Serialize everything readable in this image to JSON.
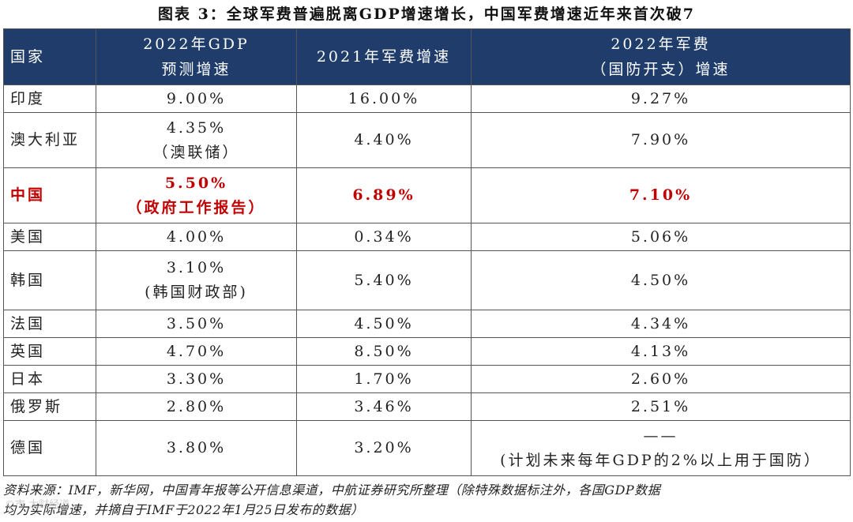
{
  "title": "图表 3：全球军费普遍脱离GDP增速增长，中国军费增速近年来首次破7",
  "headers": {
    "country": "国家",
    "gdp_line1": "2022年GDP",
    "gdp_line2": "预测增速",
    "mil2021": "2021年军费增速",
    "mil2022_line1": "2022年军费",
    "mil2022_line2": "（国防开支）增速"
  },
  "rows": [
    {
      "country": "印度",
      "gdp": "9.00%",
      "gdp_note": "",
      "mil2021": "16.00%",
      "mil2022": "9.27%",
      "mil2022_note": ""
    },
    {
      "country": "澳大利亚",
      "gdp": "4.35%",
      "gdp_note": "（澳联储）",
      "mil2021": "4.40%",
      "mil2022": "7.90%",
      "mil2022_note": ""
    },
    {
      "country": "中国",
      "gdp": "5.50%",
      "gdp_note": "（政府工作报告）",
      "mil2021": "6.89%",
      "mil2022": "7.10%",
      "mil2022_note": ""
    },
    {
      "country": "美国",
      "gdp": "4.00%",
      "gdp_note": "",
      "mil2021": "0.34%",
      "mil2022": "5.06%",
      "mil2022_note": ""
    },
    {
      "country": "韩国",
      "gdp": "3.10%",
      "gdp_note": "(韩国财政部)",
      "mil2021": "5.40%",
      "mil2022": "4.50%",
      "mil2022_note": ""
    },
    {
      "country": "法国",
      "gdp": "3.50%",
      "gdp_note": "",
      "mil2021": "4.50%",
      "mil2022": "4.34%",
      "mil2022_note": ""
    },
    {
      "country": "英国",
      "gdp": "4.70%",
      "gdp_note": "",
      "mil2021": "8.50%",
      "mil2022": "4.13%",
      "mil2022_note": ""
    },
    {
      "country": "日本",
      "gdp": "3.30%",
      "gdp_note": "",
      "mil2021": "1.70%",
      "mil2022": "2.60%",
      "mil2022_note": ""
    },
    {
      "country": "俄罗斯",
      "gdp": "2.80%",
      "gdp_note": "",
      "mil2021": "3.46%",
      "mil2022": "2.51%",
      "mil2022_note": ""
    },
    {
      "country": "德国",
      "gdp": "3.80%",
      "gdp_note": "",
      "mil2021": "3.20%",
      "mil2022": "——",
      "mil2022_note": "(计划未来每年GDP的2%以上用于国防）"
    }
  ],
  "footer_line1": "资料来源：IMF，新华网，中国青年报等公开信息渠道，中航证券研究所整理（除特殊数据标注外，各国GDP数据",
  "footer_line2": "均为实际增速，并摘自于IMF于2022年1月25日发布的数据）",
  "watermark": "©市 大财经道"
}
